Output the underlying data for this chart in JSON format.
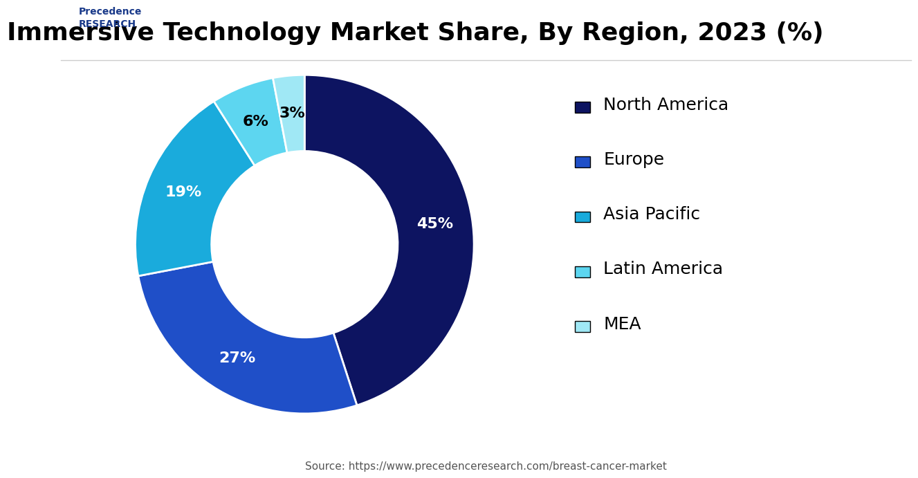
{
  "title": "Immersive Technology Market Share, By Region, 2023 (%)",
  "segments": [
    {
      "label": "North America",
      "value": 45,
      "color": "#0d1461"
    },
    {
      "label": "Europe",
      "value": 27,
      "color": "#1f4fc8"
    },
    {
      "label": "Asia Pacific",
      "value": 19,
      "color": "#1aabdc"
    },
    {
      "label": "Latin America",
      "value": 6,
      "color": "#5dd6f0"
    },
    {
      "label": "MEA",
      "value": 3,
      "color": "#a0e8f5"
    }
  ],
  "background_color": "#ffffff",
  "title_fontsize": 26,
  "label_fontsize": 16,
  "legend_fontsize": 18,
  "source_text": "Source: https://www.precedenceresearch.com/breast-cancer-market",
  "source_fontsize": 11,
  "wedge_text_colors": [
    "white",
    "white",
    "white",
    "black",
    "black"
  ],
  "startangle": 90,
  "donut_ratio": 0.55
}
